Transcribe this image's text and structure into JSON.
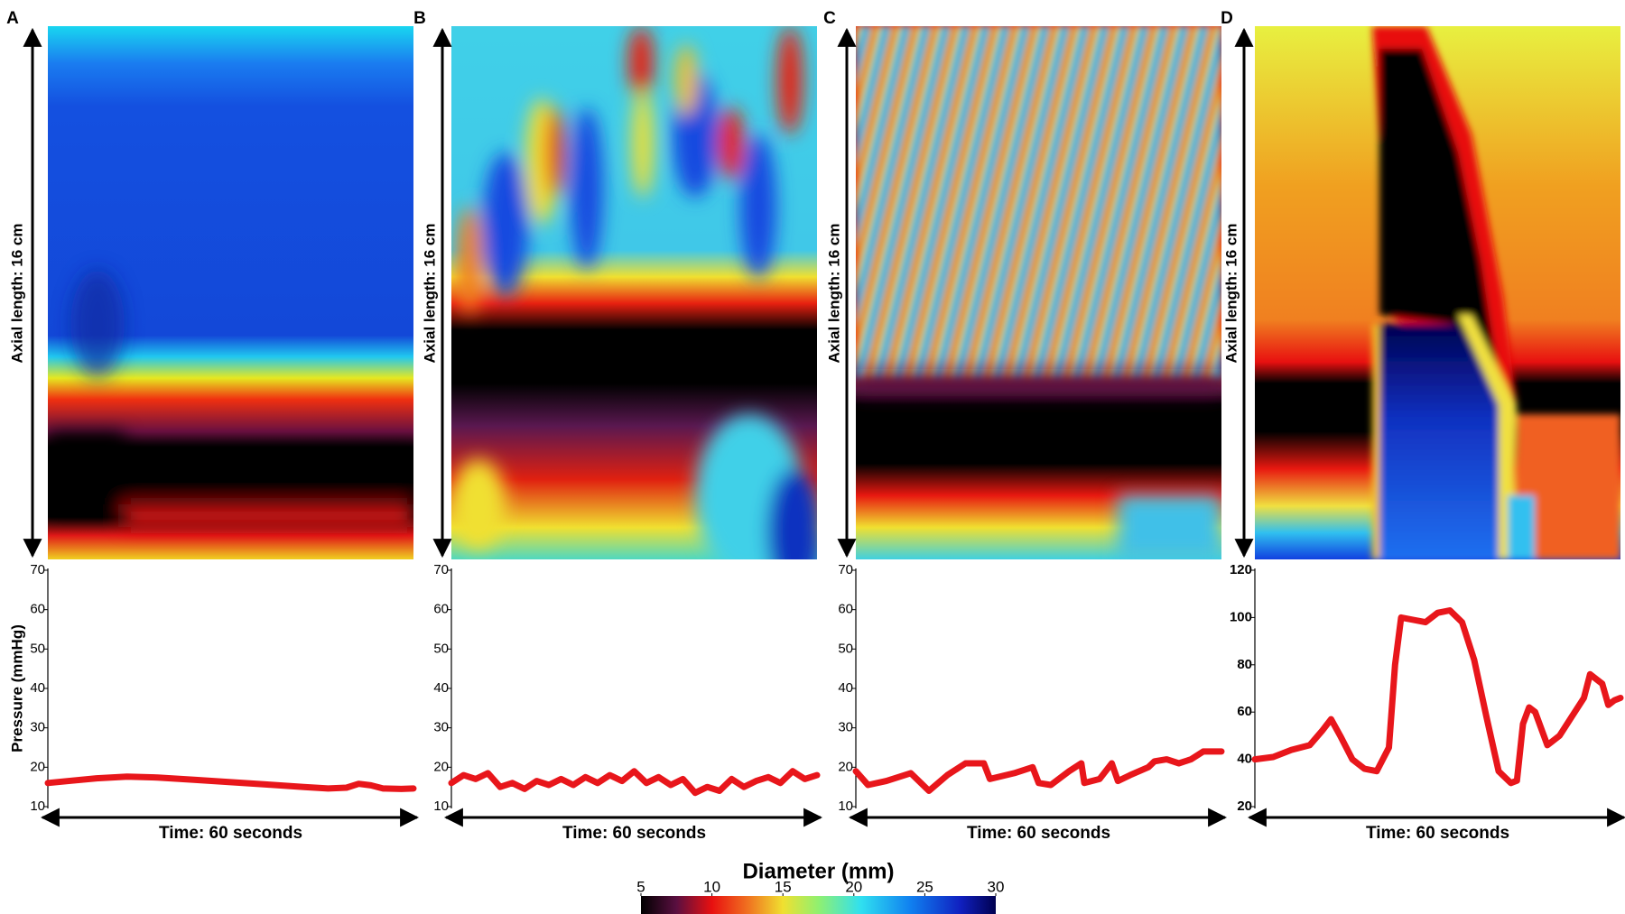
{
  "chart_data": [
    {
      "type": "line",
      "panel_label": "A",
      "axial_label": "Axial length: 16 cm",
      "x_label": "Time: 60 seconds",
      "y_label": "Pressure (mmHg)",
      "xlim": [
        0,
        60
      ],
      "ylim": [
        10,
        70
      ],
      "yticks": [
        10,
        20,
        30,
        40,
        50,
        60,
        70
      ],
      "series": [
        {
          "color": "#e8161b",
          "x": [
            0,
            4,
            8,
            13,
            18,
            24,
            30,
            36,
            42,
            46,
            49,
            51,
            53,
            55,
            58,
            60
          ],
          "values": [
            16,
            16.6,
            17.2,
            17.6,
            17.4,
            16.8,
            16.2,
            15.6,
            15,
            14.6,
            14.8,
            15.8,
            15.4,
            14.6,
            14.5,
            14.6
          ]
        }
      ]
    },
    {
      "type": "line",
      "panel_label": "B",
      "axial_label": "Axial length: 16 cm",
      "x_label": "Time: 60 seconds",
      "xlim": [
        0,
        60
      ],
      "ylim": [
        10,
        70
      ],
      "yticks": [
        10,
        20,
        30,
        40,
        50,
        60,
        70
      ],
      "series": [
        {
          "color": "#e8161b",
          "x": [
            0,
            2,
            4,
            6,
            8,
            10,
            12,
            14,
            16,
            18,
            20,
            22,
            24,
            26,
            28,
            30,
            32,
            34,
            36,
            38,
            40,
            42,
            44,
            46,
            48,
            50,
            52,
            54,
            56,
            58,
            60
          ],
          "values": [
            16,
            18,
            17,
            18.5,
            15,
            16,
            14.5,
            16.5,
            15.5,
            17,
            15.5,
            17.5,
            16,
            18,
            16.5,
            19,
            16,
            17.5,
            15.5,
            17,
            13.5,
            15,
            14,
            17,
            15,
            16.5,
            17.5,
            16,
            19,
            17,
            18
          ]
        }
      ]
    },
    {
      "type": "line",
      "panel_label": "C",
      "axial_label": "Axial length: 16 cm",
      "x_label": "Time: 60 seconds",
      "xlim": [
        0,
        60
      ],
      "ylim": [
        10,
        70
      ],
      "yticks": [
        10,
        20,
        30,
        40,
        50,
        60,
        70
      ],
      "series": [
        {
          "color": "#e8161b",
          "x": [
            0,
            2,
            5,
            9,
            10,
            12,
            15,
            18,
            21,
            22,
            26,
            29,
            30,
            32,
            35,
            37,
            37.5,
            40,
            42,
            43,
            45,
            48,
            49,
            51,
            53,
            55,
            57,
            60
          ],
          "values": [
            19,
            15.5,
            16.5,
            18.5,
            17,
            14,
            18,
            21,
            21,
            17,
            18.5,
            20,
            16,
            15.5,
            19,
            21,
            16,
            17,
            21,
            16.5,
            18,
            20,
            21.5,
            22,
            21,
            22,
            24,
            24
          ]
        }
      ]
    },
    {
      "type": "line",
      "panel_label": "D",
      "axial_label": "Axial length: 16 cm",
      "x_label": "Time: 60 seconds",
      "xlim": [
        0,
        60
      ],
      "ylim": [
        20,
        120
      ],
      "yticks": [
        20,
        40,
        60,
        80,
        100,
        120
      ],
      "series": [
        {
          "color": "#e8161b",
          "x": [
            0,
            3,
            6,
            9,
            11,
            12.5,
            14,
            16,
            18,
            20,
            22,
            23,
            24,
            26,
            28,
            30,
            32,
            34,
            36,
            38,
            40,
            42,
            43,
            44,
            45,
            46,
            48,
            50,
            52,
            54,
            55,
            57,
            58,
            59,
            60
          ],
          "values": [
            40,
            41,
            44,
            46,
            52,
            57,
            50,
            40,
            36,
            35,
            45,
            80,
            100,
            99,
            98,
            102,
            103,
            98,
            82,
            58,
            35,
            30,
            31,
            55,
            62,
            60,
            46,
            50,
            58,
            66,
            76,
            72,
            63,
            65,
            66
          ]
        }
      ]
    },
    {
      "type": "colorbar",
      "title": "Diameter (mm)",
      "lim": [
        5,
        30
      ],
      "ticks": [
        5,
        10,
        15,
        20,
        25,
        30
      ]
    }
  ]
}
